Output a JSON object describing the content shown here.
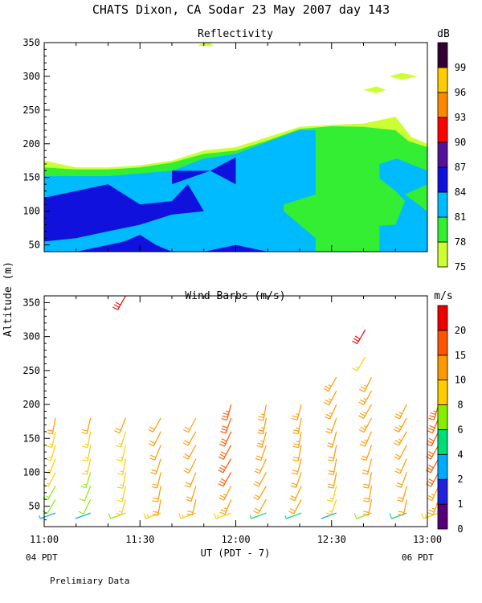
{
  "page": {
    "title": "CHATS Dixon, CA  Sodar  23 May 2007  day 143",
    "ylabel": "Altitude (m)",
    "xlabel": "UT  (PDT - 7)",
    "left_note": "04 PDT",
    "right_note": "06 PDT",
    "footer": "Prelimiary Data"
  },
  "chart_data": [
    {
      "type": "area",
      "title": "Reflectivity",
      "x_ticks": [
        "11:00",
        "11:30",
        "12:00",
        "12:30",
        "13:00"
      ],
      "xlim": [
        "11:00",
        "13:00"
      ],
      "ylim": [
        40,
        350
      ],
      "y_ticks": [
        50,
        100,
        150,
        200,
        250,
        300,
        350
      ],
      "colorbar": {
        "unit": "dB",
        "levels": [
          75,
          78,
          81,
          84,
          87,
          90,
          93,
          96,
          99
        ],
        "colors": [
          "#ccff33",
          "#33ee33",
          "#00bbff",
          "#1111dd",
          "#551199",
          "#ff0000",
          "#ff8800",
          "#ffcc00",
          "#330033"
        ]
      },
      "regions": [
        {
          "level": 75,
          "color": "#ccff33",
          "outline": [
            [
              0,
              175
            ],
            [
              10,
              165
            ],
            [
              20,
              165
            ],
            [
              30,
              168
            ],
            [
              40,
              175
            ],
            [
              50,
              190
            ],
            [
              60,
              195
            ],
            [
              70,
              210
            ],
            [
              80,
              225
            ],
            [
              90,
              228
            ],
            [
              100,
              230
            ],
            [
              110,
              240
            ],
            [
              115,
              210
            ],
            [
              120,
              200
            ],
            [
              120,
              40
            ],
            [
              0,
              40
            ]
          ]
        },
        {
          "level": 78,
          "color": "#33ee33",
          "outline": [
            [
              0,
              165
            ],
            [
              10,
              162
            ],
            [
              20,
              162
            ],
            [
              30,
              165
            ],
            [
              40,
              172
            ],
            [
              50,
              185
            ],
            [
              60,
              190
            ],
            [
              70,
              205
            ],
            [
              80,
              222
            ],
            [
              90,
              226
            ],
            [
              100,
              225
            ],
            [
              110,
              220
            ],
            [
              115,
              200
            ],
            [
              120,
              195
            ],
            [
              120,
              40
            ],
            [
              0,
              40
            ]
          ]
        },
        {
          "level": 81,
          "color": "#00bbff",
          "outline": [
            [
              0,
              152
            ],
            [
              20,
              152
            ],
            [
              40,
              160
            ],
            [
              50,
              178
            ],
            [
              60,
              185
            ],
            [
              70,
              203
            ],
            [
              80,
              220
            ],
            [
              85,
              220
            ],
            [
              85,
              40
            ],
            [
              0,
              40
            ]
          ]
        },
        {
          "level": 81,
          "color": "#00bbff",
          "outline": [
            [
              105,
              190
            ],
            [
              112,
              175
            ],
            [
              120,
              160
            ],
            [
              120,
              40
            ],
            [
              105,
              40
            ]
          ]
        },
        {
          "level": 84,
          "color": "#1111dd",
          "outline": [
            [
              0,
              120
            ],
            [
              10,
              130
            ],
            [
              20,
              140
            ],
            [
              25,
              125
            ],
            [
              30,
              110
            ],
            [
              40,
              115
            ],
            [
              45,
              140
            ],
            [
              50,
              100
            ],
            [
              40,
              95
            ],
            [
              30,
              80
            ],
            [
              20,
              70
            ],
            [
              10,
              60
            ],
            [
              0,
              55
            ]
          ]
        },
        {
          "level": 84,
          "color": "#1111dd",
          "outline": [
            [
              40,
              160
            ],
            [
              52,
              160
            ],
            [
              60,
              180
            ],
            [
              60,
              140
            ],
            [
              52,
              160
            ],
            [
              40,
              140
            ]
          ]
        },
        {
          "level": 84,
          "color": "#1111dd",
          "outline": [
            [
              0,
              90
            ],
            [
              5,
              85
            ],
            [
              0,
              75
            ]
          ]
        },
        {
          "level": 84,
          "color": "#1111dd",
          "outline": [
            [
              10,
              40
            ],
            [
              25,
              55
            ],
            [
              30,
              65
            ],
            [
              35,
              50
            ],
            [
              40,
              40
            ]
          ]
        },
        {
          "level": 84,
          "color": "#1111dd",
          "outline": [
            [
              50,
              40
            ],
            [
              60,
              50
            ],
            [
              70,
              40
            ]
          ]
        },
        {
          "level": 78,
          "color": "#33ee33",
          "outline": [
            [
              75,
              110
            ],
            [
              85,
              125
            ],
            [
              95,
              140
            ],
            [
              102,
              160
            ],
            [
              110,
              130
            ],
            [
              113,
              115
            ],
            [
              110,
              80
            ],
            [
              95,
              75
            ],
            [
              85,
              60
            ],
            [
              80,
              80
            ],
            [
              75,
              100
            ]
          ]
        },
        {
          "level": 78,
          "color": "#33ee33",
          "outline": [
            [
              85,
              200
            ],
            [
              90,
              215
            ],
            [
              100,
              225
            ],
            [
              110,
              210
            ],
            [
              120,
              195
            ],
            [
              115,
              185
            ],
            [
              105,
              170
            ],
            [
              95,
              175
            ],
            [
              88,
              180
            ]
          ]
        },
        {
          "level": 78,
          "color": "#33ee33",
          "outline": [
            [
              113,
              125
            ],
            [
              120,
              140
            ],
            [
              120,
              100
            ]
          ]
        },
        {
          "level": 75,
          "color": "#ccff33",
          "outline": [
            [
              48,
              345
            ],
            [
              50,
              350
            ],
            [
              52,
              350
            ],
            [
              53,
              345
            ]
          ]
        },
        {
          "level": 75,
          "color": "#ccff33",
          "outline": [
            [
              100,
              280
            ],
            [
              104,
              285
            ],
            [
              107,
              280
            ],
            [
              104,
              275
            ]
          ]
        },
        {
          "level": 75,
          "color": "#ccff33",
          "outline": [
            [
              108,
              300
            ],
            [
              112,
              305
            ],
            [
              117,
              300
            ],
            [
              112,
              295
            ]
          ]
        }
      ]
    },
    {
      "type": "wind_barbs",
      "title": "Wind Barbs (m/s)",
      "ylabel": "Altitude (m)",
      "x_ticks": [
        "11:00",
        "11:30",
        "12:00",
        "12:30",
        "13:00"
      ],
      "xlim": [
        "11:00",
        "13:00"
      ],
      "ylim": [
        20,
        360
      ],
      "y_ticks": [
        50,
        100,
        150,
        200,
        250,
        300,
        350
      ],
      "colorbar": {
        "unit": "m/s",
        "levels": [
          0,
          1,
          2,
          4,
          6,
          8,
          10,
          15,
          20
        ],
        "colors": [
          "#550077",
          "#2222dd",
          "#00aaff",
          "#00dd77",
          "#88ee00",
          "#ffcc00",
          "#ff9900",
          "#ff5500",
          "#ee0000"
        ]
      },
      "barbs": {
        "times": [
          "11:00",
          "11:11",
          "11:22",
          "11:33",
          "11:44",
          "11:55",
          "12:06",
          "12:17",
          "12:28",
          "12:39",
          "12:50",
          "13:00"
        ],
        "profiles": [
          {
            "top": 180,
            "near_surface_speed": 3,
            "upper_speed": 10
          },
          {
            "top": 180,
            "near_surface_speed": 2,
            "upper_speed": 10
          },
          {
            "top": 180,
            "near_surface_speed": 6,
            "upper_speed": 10
          },
          {
            "top": 180,
            "near_surface_speed": 8,
            "upper_speed": 12
          },
          {
            "top": 195,
            "near_surface_speed": 9,
            "upper_speed": 12
          },
          {
            "top": 215,
            "near_surface_speed": 8,
            "upper_speed": 18
          },
          {
            "top": 215,
            "near_surface_speed": 4,
            "upper_speed": 14
          },
          {
            "top": 215,
            "near_surface_speed": 4,
            "upper_speed": 14
          },
          {
            "top": 240,
            "near_surface_speed": 2,
            "upper_speed": 14
          },
          {
            "top": 240,
            "near_surface_speed": 6,
            "upper_speed": 14
          },
          {
            "top": 210,
            "near_surface_speed": 5,
            "upper_speed": 14
          },
          {
            "top": 215,
            "near_surface_speed": 8,
            "upper_speed": 18
          }
        ],
        "isolated": [
          {
            "time": "11:22",
            "alt": 360,
            "speed": 22
          },
          {
            "time": "12:37",
            "alt": 310,
            "speed": 22
          },
          {
            "time": "12:37",
            "alt": 270,
            "speed": 9
          }
        ]
      }
    }
  ]
}
